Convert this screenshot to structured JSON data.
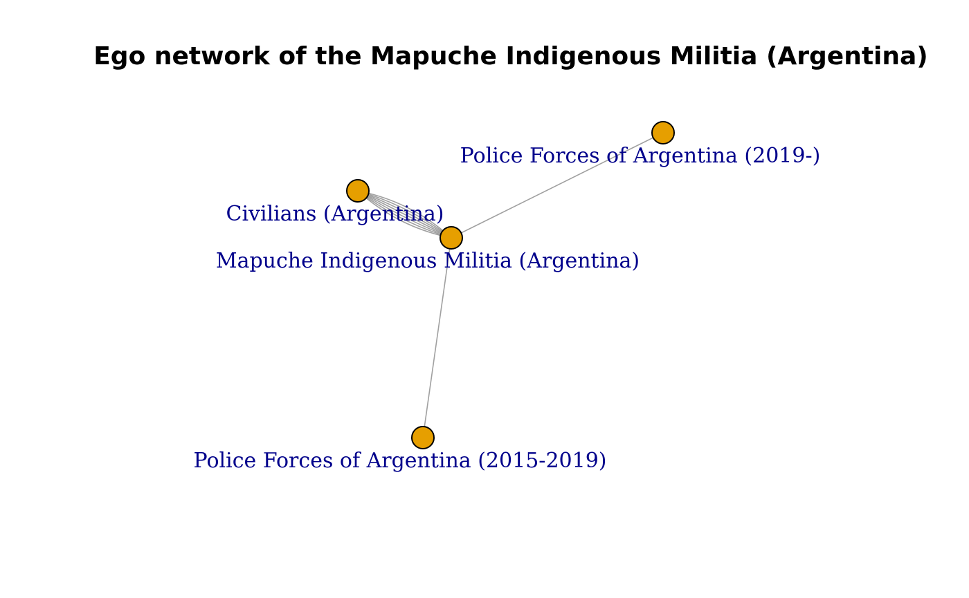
{
  "title": "Ego network of the Mapuche Indigenous Militia (Argentina)",
  "colors": {
    "node_fill": "#E69F00",
    "node_stroke": "#000000",
    "edge": "#A0A0A0",
    "label": "#00008B"
  },
  "nodes": [
    {
      "id": "ego",
      "label": "Mapuche Indigenous Militia (Argentina)"
    },
    {
      "id": "civilians",
      "label": "Civilians (Argentina)"
    },
    {
      "id": "police2019",
      "label": "Police Forces of Argentina (2019-)"
    },
    {
      "id": "police2015",
      "label": "Police Forces of Argentina (2015-2019)"
    }
  ],
  "edges": [
    {
      "source": "ego",
      "target": "civilians",
      "count": 7
    },
    {
      "source": "ego",
      "target": "police2019",
      "count": 1
    },
    {
      "source": "ego",
      "target": "police2015",
      "count": 1
    }
  ]
}
